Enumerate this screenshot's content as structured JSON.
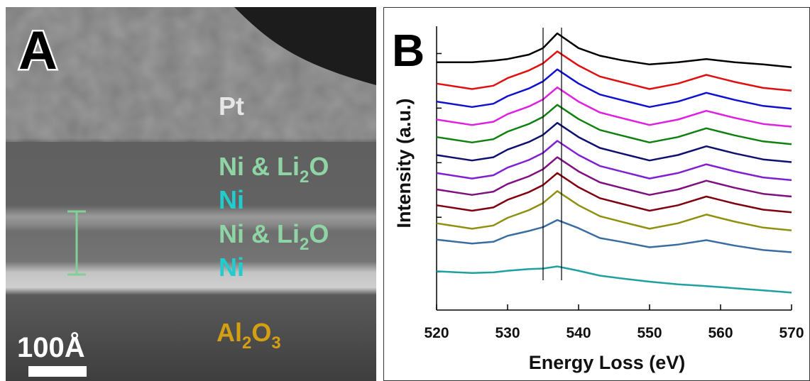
{
  "panel_a": {
    "letter": "A",
    "scale_bar": "100Å",
    "labels": [
      {
        "color": "#e6e6e6",
        "segments": [
          {
            "text": "Pt"
          }
        ]
      },
      {
        "color": "#8fd4a4",
        "segments": [
          {
            "text": "Ni & Li"
          },
          {
            "text": "2",
            "sub": true
          },
          {
            "text": "O"
          }
        ]
      },
      {
        "color": "#22cccc",
        "segments": [
          {
            "text": "Ni"
          }
        ]
      },
      {
        "color": "#8fd4a4",
        "segments": [
          {
            "text": "Ni & Li"
          },
          {
            "text": "2",
            "sub": true
          },
          {
            "text": "O"
          }
        ]
      },
      {
        "color": "#22cccc",
        "segments": [
          {
            "text": "Ni"
          }
        ]
      },
      {
        "color": "#d4a012",
        "segments": [
          {
            "text": "Al"
          },
          {
            "text": "2",
            "sub": true
          },
          {
            "text": "O"
          },
          {
            "text": "3",
            "sub": true
          }
        ]
      }
    ]
  },
  "chart_data": {
    "type": "line",
    "letter": "B",
    "xlabel": "Energy Loss (eV)",
    "ylabel": "Intensity (a.u.)",
    "x": [
      520,
      525,
      528,
      530,
      533,
      535,
      537,
      540,
      543,
      546,
      550,
      554,
      558,
      562,
      566,
      570
    ],
    "xlim": [
      520,
      570
    ],
    "xticks": [
      520,
      530,
      540,
      550,
      560,
      570
    ],
    "ylim": [
      0.3,
      5.5
    ],
    "yticks": [
      1,
      2,
      3,
      4,
      5
    ],
    "vlines": [
      535,
      537.6
    ],
    "series": [
      {
        "color": "#000000",
        "values": [
          4.84,
          4.84,
          4.87,
          4.9,
          4.98,
          5.1,
          5.37,
          5.1,
          4.96,
          4.88,
          4.8,
          4.84,
          4.9,
          4.84,
          4.8,
          4.75
        ]
      },
      {
        "color": "#e01010",
        "values": [
          4.45,
          4.35,
          4.41,
          4.55,
          4.69,
          4.82,
          5.04,
          4.78,
          4.58,
          4.48,
          4.35,
          4.45,
          4.61,
          4.48,
          4.37,
          4.32
        ]
      },
      {
        "color": "#1010d0",
        "values": [
          4.12,
          4.02,
          4.08,
          4.22,
          4.36,
          4.49,
          4.71,
          4.45,
          4.25,
          4.15,
          4.02,
          4.12,
          4.28,
          4.15,
          4.04,
          3.99
        ]
      },
      {
        "color": "#e020e0",
        "values": [
          3.79,
          3.69,
          3.75,
          3.89,
          4.03,
          4.16,
          4.38,
          4.12,
          3.92,
          3.82,
          3.69,
          3.79,
          3.95,
          3.82,
          3.71,
          3.66
        ]
      },
      {
        "color": "#108010",
        "values": [
          3.47,
          3.37,
          3.43,
          3.57,
          3.71,
          3.84,
          4.06,
          3.8,
          3.6,
          3.5,
          3.37,
          3.47,
          3.63,
          3.5,
          3.39,
          3.34
        ]
      },
      {
        "color": "#101070",
        "values": [
          3.14,
          3.04,
          3.1,
          3.24,
          3.38,
          3.51,
          3.73,
          3.47,
          3.27,
          3.17,
          3.04,
          3.14,
          3.3,
          3.17,
          3.06,
          3.01
        ]
      },
      {
        "color": "#8020d0",
        "values": [
          2.81,
          2.71,
          2.77,
          2.91,
          3.05,
          3.18,
          3.4,
          3.14,
          2.94,
          2.84,
          2.71,
          2.81,
          2.97,
          2.84,
          2.73,
          2.68
        ]
      },
      {
        "color": "#801080",
        "values": [
          2.51,
          2.41,
          2.47,
          2.61,
          2.75,
          2.88,
          3.1,
          2.84,
          2.64,
          2.54,
          2.41,
          2.51,
          2.67,
          2.54,
          2.43,
          2.38
        ]
      },
      {
        "color": "#800010",
        "values": [
          2.22,
          2.12,
          2.18,
          2.32,
          2.46,
          2.59,
          2.81,
          2.55,
          2.35,
          2.25,
          2.12,
          2.22,
          2.38,
          2.25,
          2.14,
          2.09
        ]
      },
      {
        "color": "#909010",
        "values": [
          1.89,
          1.79,
          1.85,
          1.99,
          2.13,
          2.26,
          2.48,
          2.22,
          2.02,
          1.92,
          1.79,
          1.89,
          2.05,
          1.92,
          1.81,
          1.76
        ]
      },
      {
        "color": "#3a6ea0",
        "values": [
          1.59,
          1.52,
          1.55,
          1.66,
          1.75,
          1.82,
          1.95,
          1.8,
          1.62,
          1.55,
          1.45,
          1.5,
          1.58,
          1.48,
          1.4,
          1.36
        ]
      },
      {
        "color": "#20a0a0",
        "values": [
          1.01,
          0.98,
          0.99,
          1.02,
          1.05,
          1.06,
          1.1,
          1.02,
          0.93,
          0.88,
          0.82,
          0.77,
          0.74,
          0.7,
          0.66,
          0.62
        ]
      }
    ]
  }
}
